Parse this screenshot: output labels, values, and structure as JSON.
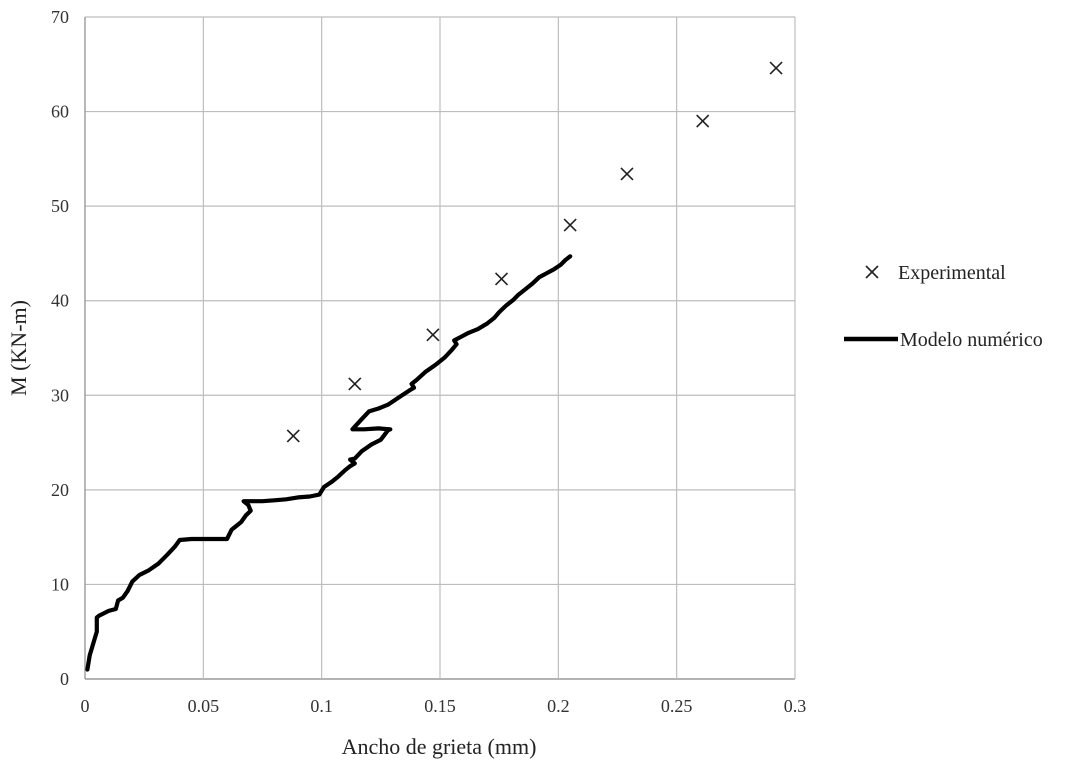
{
  "chart_data": {
    "type": "scatter",
    "title": "",
    "xlabel": "Ancho  de grieta  (mm)",
    "ylabel": "M (KN-m)",
    "xlim": [
      0,
      0.3
    ],
    "ylim": [
      0,
      70
    ],
    "xticks": [
      0,
      0.05,
      0.1,
      0.15,
      0.2,
      0.25,
      0.3
    ],
    "xtick_labels": [
      "0",
      "0.05",
      "0.1",
      "0.15",
      "0.2",
      "0.25",
      "0.3"
    ],
    "yticks": [
      0,
      10,
      20,
      30,
      40,
      50,
      60,
      70
    ],
    "ytick_labels": [
      "0",
      "10",
      "20",
      "30",
      "40",
      "50",
      "60",
      "70"
    ],
    "grid": true,
    "legend_position": "right",
    "series": [
      {
        "name": "Experimental",
        "kind": "markers",
        "marker": "x",
        "color": "#222222",
        "x": [
          0.088,
          0.114,
          0.147,
          0.176,
          0.205,
          0.229,
          0.261,
          0.292
        ],
        "y": [
          25.7,
          31.2,
          36.4,
          42.3,
          48.0,
          53.4,
          59.0,
          64.6
        ]
      },
      {
        "name": "Modelo numérico",
        "kind": "line",
        "color": "#000000",
        "x": [
          0.001,
          0.002,
          0.004,
          0.005,
          0.005,
          0.006,
          0.01,
          0.013,
          0.014,
          0.016,
          0.018,
          0.02,
          0.023,
          0.027,
          0.031,
          0.035,
          0.038,
          0.04,
          0.045,
          0.05,
          0.055,
          0.06,
          0.062,
          0.064,
          0.066,
          0.068,
          0.07,
          0.069,
          0.067,
          0.07,
          0.075,
          0.08,
          0.085,
          0.09,
          0.095,
          0.099,
          0.101,
          0.104,
          0.107,
          0.11,
          0.112,
          0.114,
          0.113,
          0.112,
          0.114,
          0.117,
          0.121,
          0.125,
          0.128,
          0.129,
          0.124,
          0.118,
          0.113,
          0.117,
          0.12,
          0.124,
          0.128,
          0.131,
          0.134,
          0.137,
          0.139,
          0.138,
          0.14,
          0.144,
          0.148,
          0.152,
          0.155,
          0.157,
          0.156,
          0.159,
          0.162,
          0.166,
          0.17,
          0.172,
          0.173,
          0.175,
          0.178,
          0.181,
          0.183,
          0.186,
          0.189,
          0.192,
          0.195,
          0.198,
          0.201,
          0.203,
          0.205
        ],
        "y": [
          1.0,
          2.5,
          4.2,
          5.0,
          6.5,
          6.7,
          7.2,
          7.4,
          8.3,
          8.6,
          9.3,
          10.3,
          11.0,
          11.5,
          12.2,
          13.2,
          14.0,
          14.7,
          14.8,
          14.8,
          14.8,
          14.8,
          15.8,
          16.2,
          16.6,
          17.3,
          17.8,
          18.4,
          18.8,
          18.8,
          18.8,
          18.9,
          19.0,
          19.2,
          19.3,
          19.5,
          20.3,
          20.8,
          21.4,
          22.1,
          22.5,
          22.8,
          23.0,
          23.2,
          23.3,
          24.1,
          24.8,
          25.3,
          26.3,
          26.4,
          26.5,
          26.4,
          26.4,
          27.5,
          28.3,
          28.6,
          29.0,
          29.5,
          30.0,
          30.5,
          30.8,
          31.2,
          31.6,
          32.5,
          33.2,
          34.0,
          34.8,
          35.4,
          35.8,
          36.2,
          36.6,
          37.0,
          37.6,
          38.0,
          38.2,
          38.8,
          39.5,
          40.1,
          40.6,
          41.2,
          41.8,
          42.5,
          42.9,
          43.3,
          43.8,
          44.3,
          44.7
        ]
      }
    ]
  }
}
